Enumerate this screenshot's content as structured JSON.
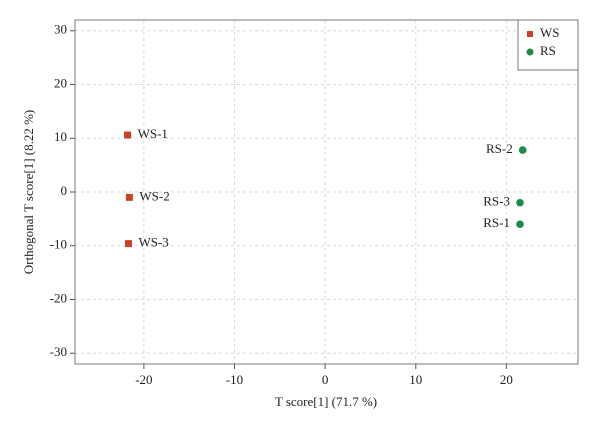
{
  "chart_data": {
    "type": "scatter",
    "xlabel": "T score[1] (71.7 %)",
    "ylabel": "Orthogonal T score[1] (8.22 %)",
    "xlim": [
      -27.6,
      27.9
    ],
    "ylim": [
      -32,
      32
    ],
    "xticks": [
      -20,
      -10,
      0,
      10,
      20
    ],
    "yticks": [
      -30,
      -20,
      -10,
      0,
      10,
      20,
      30
    ],
    "grid": true,
    "legend": "upper right",
    "series": [
      {
        "name": "WS",
        "color": "#c8412a",
        "marker": "square",
        "labels": [
          "WS-1",
          "WS-2",
          "WS-3"
        ],
        "x": [
          -21.8,
          -21.6,
          -21.7
        ],
        "values": [
          10.6,
          -1.0,
          -9.6
        ]
      },
      {
        "name": "RS",
        "color": "#1e8a4a",
        "marker": "circle",
        "labels": [
          "RS-2",
          "RS-3",
          "RS-1"
        ],
        "x": [
          21.8,
          21.5,
          21.5
        ],
        "values": [
          7.8,
          -2.0,
          -6.0
        ]
      }
    ]
  }
}
